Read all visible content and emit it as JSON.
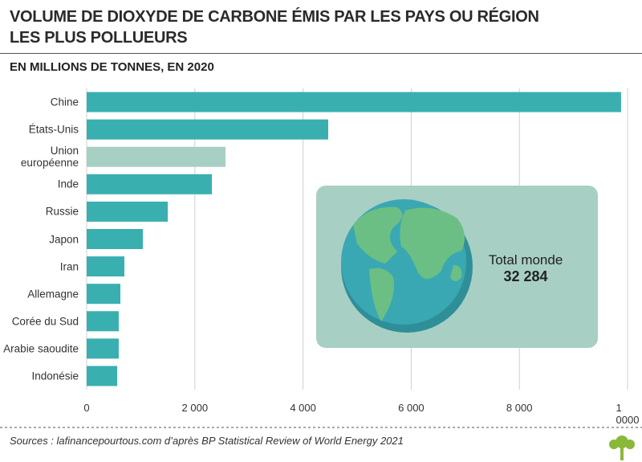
{
  "chart_data": {
    "type": "barh",
    "title": [
      "VOLUME DE DIOXYDE DE CARBONE ÉMIS PAR LES PAYS OU RÉGION",
      "LES PLUS POLLUEURS"
    ],
    "subtitle": "EN MILLIONS DE TONNES, EN 2020",
    "categories": [
      "Chine",
      "États-Unis",
      "Union européenne",
      "Inde",
      "Russie",
      "Japon",
      "Iran",
      "Allemagne",
      "Corée du Sud",
      "Arabie saoudite",
      "Indonésie"
    ],
    "values": [
      9880,
      4466,
      2567,
      2315,
      1499,
      1039,
      697,
      623,
      593,
      593,
      564
    ],
    "colors": [
      "#3aafb0",
      "#3aafb0",
      "#a8cfc4",
      "#3aafb0",
      "#3aafb0",
      "#3aafb0",
      "#3aafb0",
      "#3aafb0",
      "#3aafb0",
      "#3aafb0",
      "#3aafb0"
    ],
    "xlim": [
      0,
      10000
    ],
    "xticks": [
      0,
      {
        "value": 2000,
        "label": "2 000"
      },
      {
        "value": 4000,
        "label": "4 000"
      },
      {
        "value": 6000,
        "label": "6 000"
      },
      {
        "value": 8000,
        "label": "8 000"
      },
      {
        "value": 10000,
        "label": "1 0000"
      }
    ],
    "grid": true,
    "annotation": {
      "label": "Total monde",
      "value": "32 284"
    },
    "source": "Sources : lafinancepourtous.com d’après BP Statistical Review of World Energy 2021"
  }
}
